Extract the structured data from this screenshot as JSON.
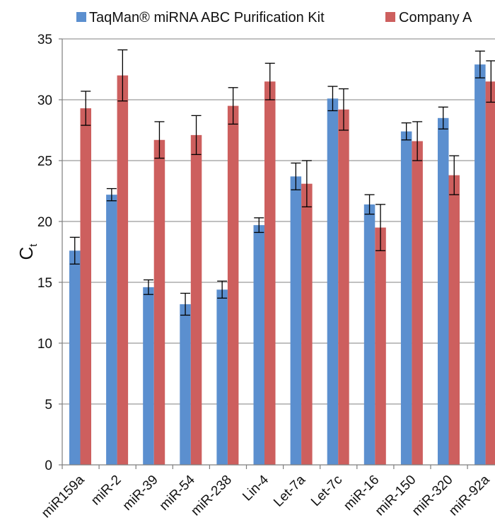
{
  "chart_data": {
    "type": "bar",
    "title": "",
    "xlabel": "",
    "ylabel": "C",
    "ylabel_subscript": "t",
    "ylim": [
      0,
      35
    ],
    "yticks": [
      0,
      5,
      10,
      15,
      20,
      25,
      30,
      35
    ],
    "grid": "horizontal",
    "legend_position": "top",
    "categories": [
      "miR159a",
      "miR-2",
      "miR-39",
      "miR-54",
      "miR-238",
      "Lin-4",
      "Let-7a",
      "Let-7c",
      "miR-16",
      "miR-150",
      "miR-320",
      "miR-92a"
    ],
    "series": [
      {
        "name": "TaqMan® miRNA ABC Purification Kit",
        "color": "#5b8fcf",
        "values": [
          17.6,
          22.2,
          14.6,
          13.2,
          14.4,
          19.7,
          23.7,
          30.1,
          21.4,
          27.4,
          28.5,
          32.9
        ],
        "errors": [
          1.1,
          0.5,
          0.6,
          0.9,
          0.7,
          0.6,
          1.1,
          1.0,
          0.8,
          0.7,
          0.9,
          1.1
        ]
      },
      {
        "name": "Company A",
        "color": "#cd5f5e",
        "values": [
          29.3,
          32.0,
          26.7,
          27.1,
          29.5,
          31.5,
          23.1,
          29.2,
          19.5,
          26.6,
          23.8,
          31.5
        ],
        "errors": [
          1.4,
          2.1,
          1.5,
          1.6,
          1.5,
          1.5,
          1.9,
          1.7,
          1.9,
          1.6,
          1.6,
          1.7
        ]
      }
    ]
  }
}
